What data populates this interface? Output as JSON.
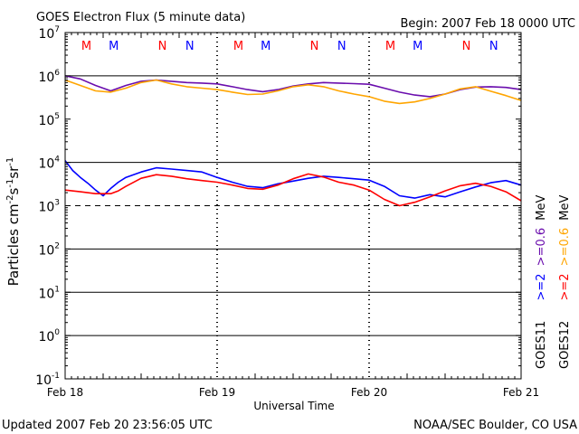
{
  "header": {
    "title": "GOES Electron Flux (5 minute data)",
    "begin": "Begin: 2007 Feb 18 0000 UTC"
  },
  "footer": {
    "updated": "Updated 2007 Feb 20 23:56:05 UTC",
    "source": "NOAA/SEC Boulder, CO USA"
  },
  "colors": {
    "goes11_ge2": "#0000ff",
    "goes12_ge2": "#ff0000",
    "goes11_ge06": "#6a0dad",
    "goes12_ge06": "#ffa500",
    "marker_m_n_first": "#ff0000",
    "marker_m_n_second": "#0000ff"
  },
  "chart_data": {
    "type": "line",
    "title": "GOES Electron Flux (5 minute data)",
    "xlabel": "Universal Time",
    "ylabel_parts": {
      "base": "Particles cm",
      "e1": "-2",
      "s": "s",
      "e2": "-1",
      "sr": "sr",
      "e3": "-1"
    },
    "x_ticks": [
      "Feb 18",
      "Feb 19",
      "Feb 20",
      "Feb 21"
    ],
    "xlim_days": [
      0,
      3
    ],
    "y_scale": "log",
    "ylim": [
      0.1,
      10000000
    ],
    "y_ticks": [
      {
        "base": "10",
        "exp": "7"
      },
      {
        "base": "10",
        "exp": "6"
      },
      {
        "base": "10",
        "exp": "5"
      },
      {
        "base": "10",
        "exp": "4"
      },
      {
        "base": "10",
        "exp": "3"
      },
      {
        "base": "10",
        "exp": "2"
      },
      {
        "base": "10",
        "exp": "1"
      },
      {
        "base": "10",
        "exp": "0"
      },
      {
        "base": "10",
        "exp": "-1"
      }
    ],
    "threshold": 1000,
    "markers": [
      {
        "label": "M",
        "day": 0.14,
        "color": "#ff0000"
      },
      {
        "label": "M",
        "day": 0.32,
        "color": "#0000ff"
      },
      {
        "label": "N",
        "day": 0.64,
        "color": "#ff0000"
      },
      {
        "label": "N",
        "day": 0.82,
        "color": "#0000ff"
      },
      {
        "label": "M",
        "day": 1.14,
        "color": "#ff0000"
      },
      {
        "label": "M",
        "day": 1.32,
        "color": "#0000ff"
      },
      {
        "label": "N",
        "day": 1.64,
        "color": "#ff0000"
      },
      {
        "label": "N",
        "day": 1.82,
        "color": "#0000ff"
      },
      {
        "label": "M",
        "day": 2.14,
        "color": "#ff0000"
      },
      {
        "label": "M",
        "day": 2.32,
        "color": "#0000ff"
      },
      {
        "label": "N",
        "day": 2.64,
        "color": "#ff0000"
      },
      {
        "label": "N",
        "day": 2.82,
        "color": "#0000ff"
      }
    ],
    "legend": {
      "col1": {
        "sat": "GOES11",
        "ge2": ">=2",
        "ge06": ">=0.6",
        "unit": "MeV"
      },
      "col2": {
        "sat": "GOES12",
        "ge2": ">=2",
        "ge06": ">=0.6",
        "unit": "MeV"
      }
    },
    "series": [
      {
        "name": "GOES11 >=2 MeV",
        "color": "#0000ff",
        "x": [
          0,
          0.05,
          0.1,
          0.15,
          0.2,
          0.25,
          0.3,
          0.35,
          0.4,
          0.5,
          0.6,
          0.7,
          0.8,
          0.9,
          1.0,
          1.1,
          1.2,
          1.3,
          1.4,
          1.5,
          1.6,
          1.7,
          1.8,
          1.9,
          2.0,
          2.1,
          2.2,
          2.3,
          2.4,
          2.5,
          2.6,
          2.7,
          2.8,
          2.9,
          3.0
        ],
        "y": [
          11000,
          6500,
          4500,
          3300,
          2300,
          1700,
          2500,
          3500,
          4500,
          6000,
          7500,
          7000,
          6500,
          6000,
          4500,
          3500,
          2800,
          2600,
          3200,
          3700,
          4300,
          4800,
          4500,
          4200,
          3900,
          2800,
          1700,
          1500,
          1800,
          1600,
          2100,
          2700,
          3400,
          3800,
          3000
        ]
      },
      {
        "name": "GOES12 >=2 MeV",
        "color": "#ff0000",
        "x": [
          0,
          0.1,
          0.2,
          0.3,
          0.35,
          0.4,
          0.5,
          0.6,
          0.7,
          0.8,
          0.9,
          1.0,
          1.1,
          1.2,
          1.3,
          1.4,
          1.5,
          1.6,
          1.7,
          1.8,
          1.9,
          2.0,
          2.1,
          2.2,
          2.3,
          2.4,
          2.5,
          2.6,
          2.7,
          2.8,
          2.9,
          3.0
        ],
        "y": [
          2300,
          2100,
          1900,
          1900,
          2200,
          2800,
          4300,
          5200,
          4800,
          4200,
          3800,
          3500,
          3000,
          2500,
          2400,
          3000,
          4200,
          5400,
          4600,
          3500,
          3000,
          2300,
          1400,
          1000,
          1200,
          1600,
          2200,
          2900,
          3300,
          2800,
          2100,
          1300
        ]
      },
      {
        "name": "GOES11 >=0.6 MeV",
        "color": "#6a0dad",
        "x": [
          0,
          0.1,
          0.2,
          0.3,
          0.4,
          0.5,
          0.6,
          0.7,
          0.8,
          0.9,
          1.0,
          1.1,
          1.2,
          1.3,
          1.4,
          1.5,
          1.6,
          1.7,
          1.8,
          1.9,
          2.0,
          2.1,
          2.2,
          2.3,
          2.4,
          2.5,
          2.6,
          2.7,
          2.8,
          2.9,
          3.0
        ],
        "y": [
          1000000,
          850000,
          600000,
          450000,
          600000,
          750000,
          800000,
          750000,
          700000,
          680000,
          650000,
          560000,
          480000,
          430000,
          480000,
          580000,
          650000,
          700000,
          680000,
          660000,
          640000,
          520000,
          420000,
          360000,
          330000,
          380000,
          480000,
          550000,
          560000,
          540000,
          480000
        ]
      },
      {
        "name": "GOES12 >=0.6 MeV",
        "color": "#ffa500",
        "x": [
          0,
          0.1,
          0.2,
          0.3,
          0.4,
          0.5,
          0.6,
          0.7,
          0.8,
          0.9,
          1.0,
          1.1,
          1.2,
          1.3,
          1.4,
          1.5,
          1.6,
          1.7,
          1.8,
          1.9,
          2.0,
          2.1,
          2.2,
          2.3,
          2.4,
          2.5,
          2.6,
          2.7,
          2.8,
          2.9,
          3.0
        ],
        "y": [
          800000,
          600000,
          450000,
          420000,
          520000,
          700000,
          800000,
          650000,
          560000,
          520000,
          480000,
          420000,
          370000,
          380000,
          450000,
          560000,
          620000,
          560000,
          450000,
          380000,
          330000,
          260000,
          230000,
          250000,
          300000,
          380000,
          500000,
          560000,
          440000,
          350000,
          270000
        ]
      }
    ]
  }
}
